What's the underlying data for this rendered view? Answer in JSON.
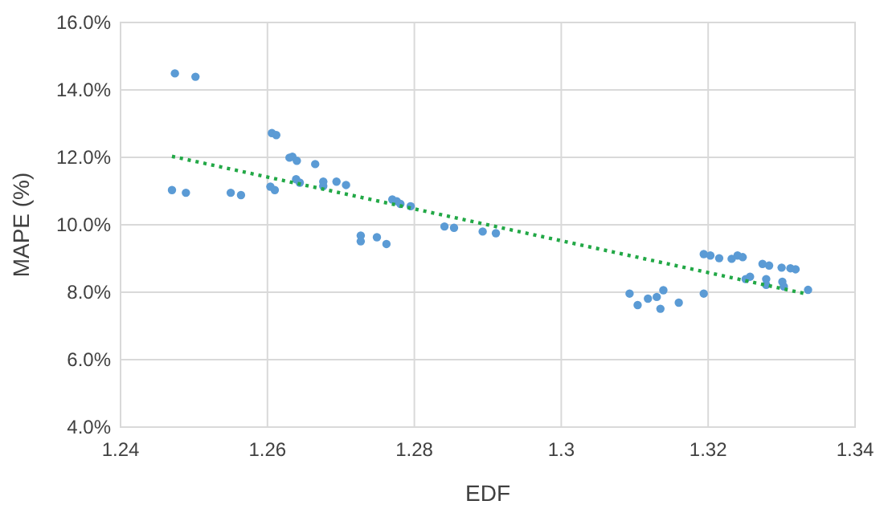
{
  "chart_data": {
    "type": "scatter",
    "xlabel": "EDF",
    "ylabel": "MAPE (%)",
    "xlim": [
      1.24,
      1.34
    ],
    "ylim": [
      4,
      16
    ],
    "xticks": [
      1.24,
      1.26,
      1.28,
      1.3,
      1.32,
      1.34
    ],
    "yticks": [
      {
        "value": 4,
        "label": "4.0%"
      },
      {
        "value": 6,
        "label": "6.0%"
      },
      {
        "value": 8,
        "label": "8.0%"
      },
      {
        "value": 10,
        "label": "10.0%"
      },
      {
        "value": 12,
        "label": "12.0%"
      },
      {
        "value": 14,
        "label": "14.0%"
      },
      {
        "value": 16,
        "label": "16.0%"
      }
    ],
    "grid": true,
    "marker": "circle",
    "series": [
      {
        "color": "#5b9bd5",
        "x": [
          1.2474,
          1.2502,
          1.247,
          1.2489,
          1.255,
          1.2564,
          1.2606,
          1.2612,
          1.2604,
          1.261,
          1.263,
          1.2634,
          1.264,
          1.2639,
          1.2644,
          1.2665,
          1.2676,
          1.2676,
          1.2694,
          1.2707,
          1.2727,
          1.2727,
          1.2749,
          1.2762,
          1.277,
          1.2776,
          1.2781,
          1.2795,
          1.2841,
          1.2854,
          1.2893,
          1.2911,
          1.3093,
          1.3104,
          1.3118,
          1.313,
          1.3135,
          1.3139,
          1.316,
          1.3194,
          1.3194,
          1.3203,
          1.3215,
          1.3232,
          1.324,
          1.3247,
          1.3251,
          1.3257,
          1.3274,
          1.3283,
          1.3279,
          1.3279,
          1.33,
          1.3312,
          1.3319,
          1.3301,
          1.3303,
          1.3336
        ],
        "values": [
          14.49,
          14.39,
          11.03,
          10.95,
          10.95,
          10.88,
          12.72,
          12.66,
          11.13,
          11.03,
          11.99,
          12.02,
          11.9,
          11.35,
          11.25,
          11.8,
          11.28,
          11.15,
          11.28,
          11.18,
          9.68,
          9.51,
          9.63,
          9.43,
          10.75,
          10.7,
          10.62,
          10.55,
          9.95,
          9.91,
          9.8,
          9.75,
          7.96,
          7.62,
          7.81,
          7.86,
          7.51,
          8.06,
          7.69,
          7.96,
          9.13,
          9.09,
          9.01,
          8.99,
          9.09,
          9.04,
          8.39,
          8.46,
          8.84,
          8.79,
          8.39,
          8.22,
          8.73,
          8.71,
          8.68,
          8.31,
          8.17,
          8.07
        ]
      },
      {
        "type": "line",
        "color": "#22a846",
        "line_style": "dotted",
        "marker": "none",
        "x": [
          1.247,
          1.3336
        ],
        "values": [
          12.03,
          7.94
        ]
      }
    ]
  }
}
